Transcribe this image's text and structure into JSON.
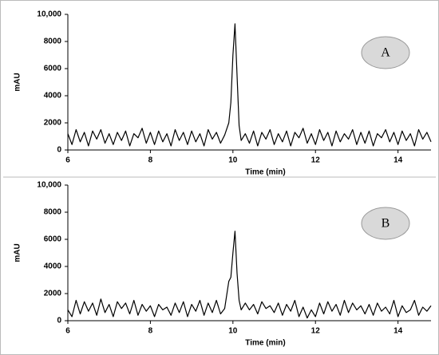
{
  "chart_data": [
    {
      "type": "line",
      "x_label": "Time (min)",
      "y_label": "mAU",
      "annotation": "A",
      "color": "#000000",
      "x": [
        6,
        6.1,
        6.2,
        6.3,
        6.4,
        6.5,
        6.6,
        6.7,
        6.8,
        6.9,
        7,
        7.1,
        7.2,
        7.3,
        7.4,
        7.5,
        7.6,
        7.7,
        7.8,
        7.9,
        8,
        8.1,
        8.2,
        8.3,
        8.4,
        8.5,
        8.6,
        8.7,
        8.8,
        8.9,
        9,
        9.1,
        9.2,
        9.3,
        9.4,
        9.5,
        9.6,
        9.7,
        9.8,
        9.9,
        9.95,
        10,
        10.05,
        10.1,
        10.15,
        10.2,
        10.3,
        10.4,
        10.5,
        10.6,
        10.7,
        10.8,
        10.9,
        11,
        11.1,
        11.2,
        11.3,
        11.4,
        11.5,
        11.6,
        11.7,
        11.8,
        11.9,
        12,
        12.1,
        12.2,
        12.3,
        12.4,
        12.5,
        12.6,
        12.7,
        12.8,
        12.9,
        13,
        13.1,
        13.2,
        13.3,
        13.4,
        13.5,
        13.6,
        13.7,
        13.8,
        13.9,
        14,
        14.1,
        14.2,
        14.3,
        14.4,
        14.5,
        14.6,
        14.7,
        14.8
      ],
      "values": [
        1200,
        400,
        1500,
        600,
        1300,
        300,
        1400,
        800,
        1500,
        500,
        1200,
        400,
        1300,
        700,
        1400,
        300,
        1200,
        900,
        1600,
        500,
        1300,
        400,
        1400,
        600,
        1200,
        300,
        1500,
        700,
        1300,
        400,
        1400,
        600,
        1200,
        300,
        1500,
        800,
        1300,
        500,
        1100,
        2000,
        3500,
        7000,
        9300,
        5500,
        1800,
        700,
        1200,
        500,
        1400,
        300,
        1300,
        800,
        1500,
        400,
        1200,
        600,
        1400,
        300,
        1300,
        900,
        1600,
        500,
        1200,
        400,
        1500,
        700,
        1300,
        300,
        1400,
        600,
        1200,
        800,
        1500,
        400,
        1300,
        500,
        1400,
        300,
        1200,
        900,
        1500,
        600,
        1300,
        400,
        1400,
        700,
        1200,
        300,
        1500,
        800,
        1300,
        600
      ],
      "xlim": [
        6,
        14.8
      ],
      "xticks": [
        6,
        8,
        10,
        12,
        14
      ],
      "ylim": [
        0,
        10000
      ],
      "yticks": [
        0,
        2000,
        4000,
        6000,
        8000,
        {
          "value": 10000,
          "label": "10,000"
        }
      ]
    },
    {
      "type": "line",
      "x_label": "Time (min)",
      "y_label": "mAU",
      "annotation": "B",
      "color": "#000000",
      "x": [
        6,
        6.1,
        6.2,
        6.3,
        6.4,
        6.5,
        6.6,
        6.7,
        6.8,
        6.9,
        7,
        7.1,
        7.2,
        7.3,
        7.4,
        7.5,
        7.6,
        7.7,
        7.8,
        7.9,
        8,
        8.1,
        8.2,
        8.3,
        8.4,
        8.5,
        8.6,
        8.7,
        8.8,
        8.9,
        9,
        9.1,
        9.2,
        9.3,
        9.4,
        9.5,
        9.6,
        9.7,
        9.8,
        9.9,
        9.95,
        10,
        10.05,
        10.1,
        10.15,
        10.2,
        10.3,
        10.4,
        10.5,
        10.6,
        10.7,
        10.8,
        10.9,
        11,
        11.1,
        11.2,
        11.3,
        11.4,
        11.5,
        11.6,
        11.7,
        11.8,
        11.9,
        12,
        12.1,
        12.2,
        12.3,
        12.4,
        12.5,
        12.6,
        12.7,
        12.8,
        12.9,
        13,
        13.1,
        13.2,
        13.3,
        13.4,
        13.5,
        13.6,
        13.7,
        13.8,
        13.9,
        14,
        14.1,
        14.2,
        14.3,
        14.4,
        14.5,
        14.6,
        14.7,
        14.8
      ],
      "values": [
        800,
        300,
        1500,
        500,
        1400,
        700,
        1300,
        400,
        1600,
        600,
        1200,
        300,
        1400,
        900,
        1300,
        500,
        1500,
        400,
        1200,
        700,
        1100,
        300,
        1200,
        800,
        1000,
        400,
        1300,
        600,
        1400,
        300,
        1200,
        700,
        1500,
        400,
        1300,
        600,
        1500,
        500,
        900,
        2900,
        3200,
        5000,
        6600,
        3500,
        1500,
        800,
        1300,
        800,
        1200,
        500,
        1400,
        900,
        1100,
        600,
        1300,
        400,
        1200,
        700,
        1500,
        300,
        1000,
        200,
        800,
        300,
        1300,
        500,
        1400,
        700,
        1200,
        400,
        1500,
        600,
        1300,
        800,
        1100,
        500,
        1200,
        400,
        1300,
        700,
        1000,
        500,
        1500,
        300,
        1100,
        600,
        800,
        1500,
        400,
        1000,
        700,
        1100
      ],
      "xlim": [
        6,
        14.8
      ],
      "xticks": [
        6,
        8,
        10,
        12,
        14
      ],
      "ylim": [
        0,
        10000
      ],
      "yticks": [
        0,
        2000,
        4000,
        6000,
        8000,
        {
          "value": 10000,
          "label": "10,000"
        }
      ]
    }
  ]
}
